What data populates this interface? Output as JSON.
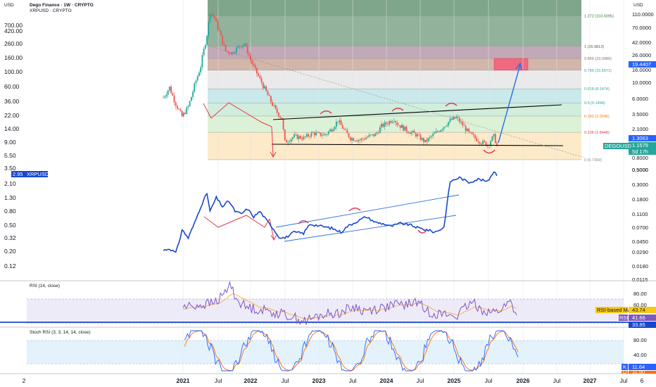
{
  "header": {
    "title": "Dego Finance · 1W · CRYPTO",
    "secondary_symbol": "XRPUSD · CRYPTO",
    "currency_left": "USD",
    "currency_right": "USD"
  },
  "colors": {
    "candle_up": "#26a69a",
    "candle_down": "#ef5350",
    "xrp_line": "#1848cc",
    "rsi_line": "#7e57c2",
    "rsi_ma": "#f9a825",
    "stoch_k": "#2962ff",
    "stoch_d": "#ff6d00",
    "red_path": "#e53950",
    "blue_arrow": "#2b6fe0",
    "black_line": "#000000"
  },
  "chart_data": [
    {
      "type": "candlestick",
      "name": "DEGOUSD",
      "scale": "log",
      "ylim": [
        0.6,
        130
      ],
      "right_ticks": [
        "110.0000",
        "70.0000",
        "42.0000",
        "26.0000",
        "16.0000",
        "10.0000",
        "6.0000",
        "3.5000",
        "2.1000",
        "1.2000",
        "0.8000",
        "0.5000"
      ],
      "price_tags": [
        {
          "label": "19.4407",
          "value": 19.44,
          "color": "#2962ff"
        },
        {
          "label": "1.3063",
          "value": 1.306,
          "color": "#2962ff"
        },
        {
          "label": "1.1579",
          "value": 1.158,
          "color": "#26a69a"
        },
        {
          "label": "5d 17h",
          "value": 1.02,
          "color": "#26a69a"
        }
      ],
      "symbol_tag": "DEGOUSD",
      "fib_levels": [
        {
          "label": "1.272 (103.6095)",
          "value": 103.61,
          "fill": "#7fa58a"
        },
        {
          "label": "1 (35.9813)",
          "value": 35.98,
          "fill": "#b79aaa"
        },
        {
          "label": "0.886 (23.0980)",
          "value": 23.1,
          "fill": "#c9a99a"
        },
        {
          "label": "0.786 (15.6571)",
          "value": 15.66,
          "fill": "#e6e6e6"
        },
        {
          "label": "0.618 (8.1474)",
          "value": 8.147,
          "fill": "#bfe5e8"
        },
        {
          "label": "0.5 (5.1494)",
          "value": 5.149,
          "fill": "#c9ead6"
        },
        {
          "label": "0.382 (3.2546)",
          "value": 3.255,
          "fill": "#d6f0d0"
        },
        {
          "label": "0.236 (1.8448)",
          "value": 1.845,
          "fill": "#fbe6bf"
        },
        {
          "label": "0 (0.7369)",
          "value": 0.7369,
          "fill": "#fcd3d8"
        }
      ],
      "target_zone": {
        "low": 15.66,
        "high": 23.1
      }
    },
    {
      "type": "line",
      "name": "XRPUSD",
      "scale": "log",
      "ylim": [
        0.0115,
        0.7
      ],
      "right_ticks": [
        "0.5000",
        "0.3000",
        "0.1800",
        "0.1100",
        "0.0700",
        "0.0450",
        "0.0290",
        "0.0180",
        "0.0115"
      ],
      "tag_label": "XRPUSD",
      "tag_value": "2.95"
    },
    {
      "type": "line",
      "name": "RSI (14, close)",
      "ylim": [
        20,
        100
      ],
      "right_ticks": [
        "80.00",
        "60.00"
      ],
      "values": {
        "rsi_ma": "43.74",
        "rsi": "41.66",
        "lower": "33.85"
      },
      "tag_labels": {
        "rsi_ma": "RSI-based MA",
        "rsi": "RSI"
      }
    },
    {
      "type": "line",
      "name": "Stoch RSI (3, 3, 14, 14, close)",
      "ylim": [
        0,
        100
      ],
      "right_ticks": [
        "80.00",
        "40.00"
      ],
      "values": {
        "k": "11.64",
        "d": "11.50"
      },
      "tag_labels": {
        "k": "K",
        "d": "D"
      }
    }
  ],
  "left_axis": {
    "labels": [
      "700.00",
      "420.00",
      "260.00",
      "160.00",
      "100.00",
      "60.00",
      "36.00",
      "22.00",
      "14.00",
      "9.00",
      "5.50",
      "3.50",
      "2.10",
      "1.30",
      "0.80",
      "0.50",
      "0.32",
      "0.20",
      "0.12"
    ]
  },
  "time_axis": [
    "2",
    "2021",
    "Jul",
    "2022",
    "Jul",
    "2023",
    "Jul",
    "2024",
    "Jul",
    "2025",
    "Jul",
    "2026",
    "Jul",
    "2027",
    "Jul",
    "6"
  ]
}
